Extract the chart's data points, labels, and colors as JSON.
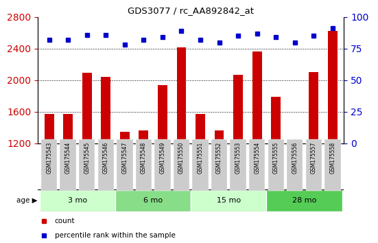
{
  "title": "GDS3077 / rc_AA892842_at",
  "samples": [
    "GSM175543",
    "GSM175544",
    "GSM175545",
    "GSM175546",
    "GSM175547",
    "GSM175548",
    "GSM175549",
    "GSM175550",
    "GSM175551",
    "GSM175552",
    "GSM175553",
    "GSM175554",
    "GSM175555",
    "GSM175556",
    "GSM175557",
    "GSM175558"
  ],
  "counts": [
    1575,
    1575,
    2090,
    2040,
    1350,
    1365,
    1940,
    2415,
    1570,
    1360,
    2070,
    2360,
    1790,
    1200,
    2100,
    2620
  ],
  "percentile_ranks": [
    82,
    82,
    86,
    86,
    78,
    82,
    84,
    89,
    82,
    80,
    85,
    87,
    84,
    80,
    85,
    91
  ],
  "ylim_left": [
    1200,
    2800
  ],
  "ylim_right": [
    0,
    100
  ],
  "yticks_left": [
    1200,
    1600,
    2000,
    2400,
    2800
  ],
  "yticks_right": [
    0,
    25,
    50,
    75,
    100
  ],
  "bar_color": "#cc0000",
  "dot_color": "#0000cc",
  "age_groups": [
    {
      "label": "3 mo",
      "start": 0,
      "end": 3,
      "color": "#ccffcc"
    },
    {
      "label": "6 mo",
      "start": 4,
      "end": 7,
      "color": "#88dd88"
    },
    {
      "label": "15 mo",
      "start": 8,
      "end": 11,
      "color": "#ccffcc"
    },
    {
      "label": "28 mo",
      "start": 12,
      "end": 15,
      "color": "#55cc55"
    }
  ],
  "xlabel_color": "#cc0000",
  "ylabel_right_color": "#0000cc",
  "background_color": "#ffffff",
  "plot_bg_color": "#ffffff",
  "tick_bg_color": "#cccccc",
  "legend_items": [
    {
      "color": "#cc0000",
      "label": "count"
    },
    {
      "color": "#0000cc",
      "label": "percentile rank within the sample"
    }
  ]
}
